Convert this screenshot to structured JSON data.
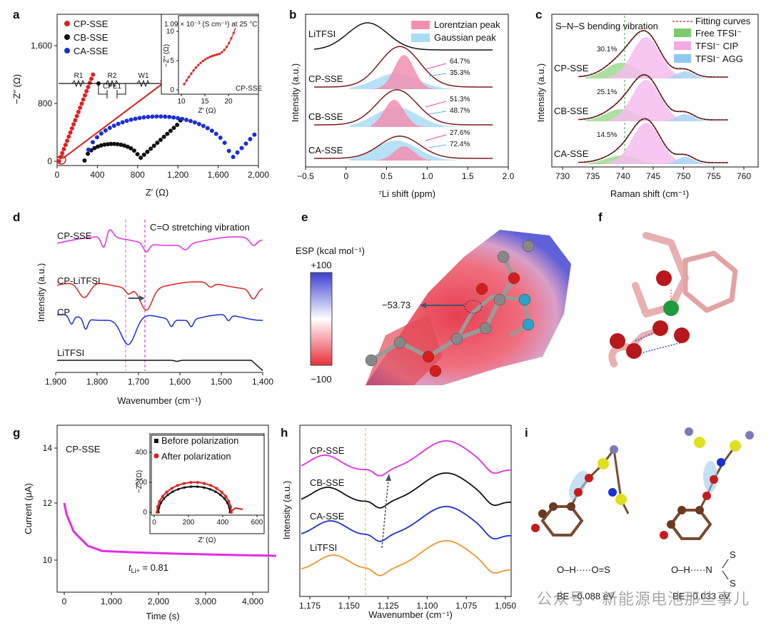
{
  "panels": {
    "a": {
      "letter": "a",
      "xlabel": "Z′ (Ω)",
      "ylabel": "−Z″ (Ω)",
      "xticks": [
        "0",
        "400",
        "800",
        "1,200",
        "1,600",
        "2,000"
      ],
      "yticks": [
        "0",
        "800",
        "1,600"
      ],
      "legend": [
        "CP-SSE",
        "CB-SSE",
        "CA-SSE"
      ],
      "circuit": [
        "R1",
        "R2",
        "W1",
        "CPE1"
      ],
      "inset": {
        "title": "1.09 × 10⁻³ (S cm⁻¹) at 25 °C",
        "label": "CP-SSE",
        "xlabel": "Z′ (Ω)",
        "ylabel": "−Z″ (Ω)",
        "xticks": [
          "10",
          "15",
          "20"
        ],
        "yticks": [
          "0",
          "5",
          "10"
        ]
      }
    },
    "b": {
      "letter": "b",
      "xlabel": "⁷Li shift (ppm)",
      "ylabel": "Intensity (a.u.)",
      "xticks": [
        "−0.5",
        "0",
        "0.5",
        "1.0",
        "1.5",
        "2.0"
      ],
      "legend": [
        "Lorentzian peak",
        "Gaussian peak"
      ],
      "traces": [
        "LiTFSI",
        "CP-SSE",
        "CB-SSE",
        "CA-SSE"
      ],
      "pct": [
        [
          "64.7%",
          "35.3%"
        ],
        [
          "51.3%",
          "48.7%"
        ],
        [
          "27.6%",
          "72.4%"
        ]
      ]
    },
    "c": {
      "letter": "c",
      "title": "S–N–S bending vibration",
      "xlabel": "Raman shift (cm⁻¹)",
      "ylabel": "Intensity (a.u.)",
      "xticks": [
        "730",
        "735",
        "740",
        "745",
        "750",
        "755",
        "760"
      ],
      "legend": [
        "Fitting curves",
        "Free TFSI⁻",
        "TFSI⁻ CIP",
        "TFSI⁻ AGG"
      ],
      "traces": [
        "CP-SSE",
        "CB-SSE",
        "CA-SSE"
      ],
      "pct": [
        "30.1%",
        "25.1%",
        "14.5%"
      ]
    },
    "d": {
      "letter": "d",
      "title": "C=O stretching vibration",
      "xlabel": "Wavenumber (cm⁻¹)",
      "ylabel": "Intensity (a.u.)",
      "xticks": [
        "1,900",
        "1,800",
        "1,700",
        "1,600",
        "1,500",
        "1,400"
      ],
      "traces": [
        "CP-SSE",
        "CP-LiTFSI",
        "CP",
        "LiTFSI"
      ]
    },
    "e": {
      "letter": "e",
      "esp_label": "ESP (kcal mol⁻¹)",
      "max": "+100",
      "min": "−100",
      "value": "−53.73"
    },
    "f": {
      "letter": "f"
    },
    "g": {
      "letter": "g",
      "label": "CP-SSE",
      "xlabel": "Time (s)",
      "ylabel": "Current (μA)",
      "xticks": [
        "0",
        "1,000",
        "2,000",
        "3,000",
        "4,000"
      ],
      "yticks": [
        "10",
        "12",
        "14"
      ],
      "t_li": "t",
      "t_sub": "Li+",
      "t_val": " = 0.81",
      "inset": {
        "legend": [
          "Before polarization",
          "After polarization"
        ],
        "xlabel": "Z′ (Ω)",
        "ylabel": "−Z″ (Ω)",
        "xticks": [
          "0",
          "200",
          "400",
          "600"
        ],
        "yticks": [
          "0",
          "200",
          "400"
        ]
      }
    },
    "h": {
      "letter": "h",
      "xlabel": "Wavenumber (cm⁻¹)",
      "ylabel": "Intensity (a.u.)",
      "xticks": [
        "1,175",
        "1,150",
        "1,125",
        "1,100",
        "1,075",
        "1,050"
      ],
      "traces": [
        "CP-SSE",
        "CB-SSE",
        "CA-SSE",
        "LiTFSI"
      ]
    },
    "i": {
      "letter": "i",
      "left": {
        "bond": "O–H·····O=S",
        "be": "BE −0.088 eV"
      },
      "right": {
        "bond": "O–H·····N",
        "be": "BE −0.033 eV",
        "s1": "S",
        "s2": "S"
      }
    }
  },
  "watermark": "公众号 · 新能源电池那些事儿",
  "chart_data": [
    {
      "type": "scatter",
      "title": "a",
      "xlabel": "Z′ (Ω)",
      "ylabel": "−Z″ (Ω)",
      "xlim": [
        0,
        2000
      ],
      "ylim": [
        0,
        2000
      ],
      "series": [
        {
          "name": "CP-SSE",
          "x": [
            10,
            30,
            60,
            100,
            150,
            200,
            250,
            300,
            350
          ],
          "y": [
            10,
            80,
            200,
            360,
            520,
            680,
            840,
            1000,
            1150
          ]
        },
        {
          "name": "CB-SSE",
          "x": [
            280,
            400,
            550,
            700,
            780,
            820,
            900,
            1000,
            1100,
            1200
          ],
          "y": [
            200,
            230,
            200,
            100,
            20,
            40,
            180,
            300,
            420,
            520
          ]
        },
        {
          "name": "CA-SSE",
          "x": [
            300,
            500,
            700,
            900,
            1100,
            1300,
            1500,
            1650,
            1700,
            1800,
            1950
          ],
          "y": [
            400,
            520,
            590,
            600,
            580,
            480,
            300,
            80,
            30,
            180,
            360
          ]
        }
      ]
    },
    {
      "type": "line",
      "title": "g",
      "xlabel": "Time (s)",
      "ylabel": "Current (μA)",
      "xlim": [
        0,
        4500
      ],
      "ylim": [
        9,
        14.5
      ],
      "x": [
        0,
        50,
        200,
        500,
        800,
        1500,
        2500,
        3500,
        4500
      ],
      "y": [
        12.0,
        11.6,
        11.0,
        10.5,
        10.32,
        10.27,
        10.22,
        10.18,
        10.15
      ]
    }
  ]
}
